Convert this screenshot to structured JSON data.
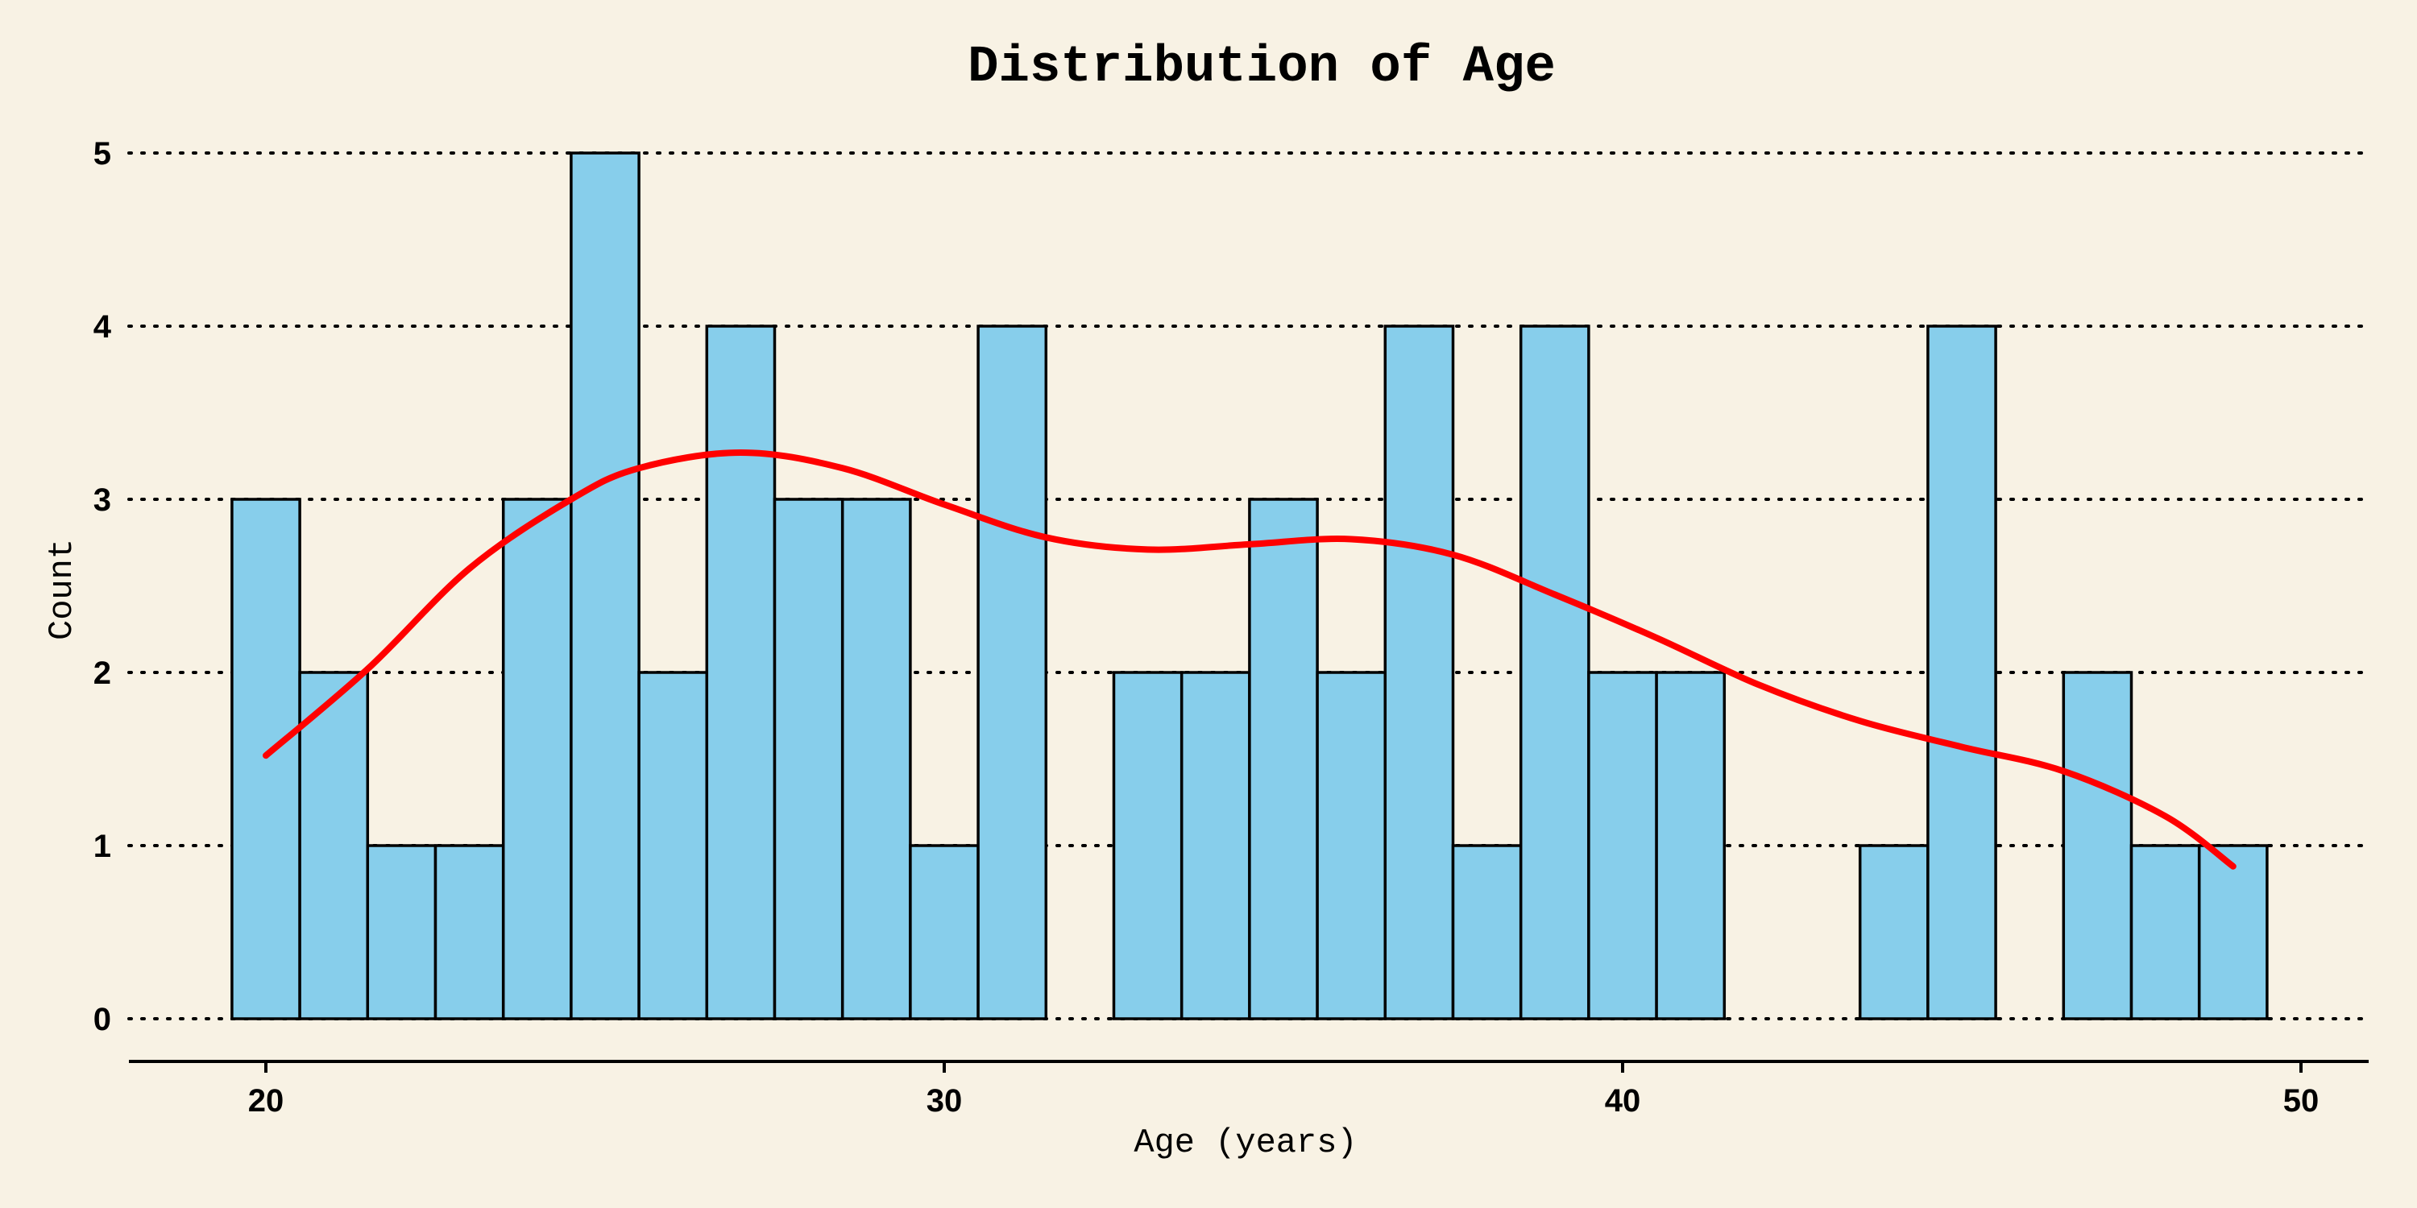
{
  "colors": {
    "background": "#f8f2e4",
    "bar_fill": "#87ceeb",
    "bar_edge": "#000000",
    "kde_line": "#ff0000",
    "grid": "#000000"
  },
  "chart_data": {
    "type": "bar",
    "title": "Distribution of Age",
    "xlabel": "Age (years)",
    "ylabel": "Count",
    "bin_width": 1,
    "bin_centers": [
      20,
      21,
      22,
      23,
      24,
      25,
      26,
      27,
      28,
      29,
      30,
      31,
      32,
      33,
      34,
      35,
      36,
      37,
      38,
      39,
      40,
      41,
      42,
      43,
      44,
      45,
      46,
      47,
      48,
      49
    ],
    "values": [
      3,
      2,
      1,
      1,
      3,
      5,
      2,
      4,
      3,
      3,
      1,
      4,
      0,
      2,
      2,
      3,
      2,
      4,
      1,
      4,
      2,
      2,
      0,
      0,
      1,
      4,
      0,
      2,
      1,
      1
    ],
    "xlim": [
      18,
      51
    ],
    "ylim": [
      0,
      5
    ],
    "x_ticks": [
      20,
      30,
      40,
      50
    ],
    "y_ticks": [
      0,
      1,
      2,
      3,
      4,
      5
    ],
    "grid": "y-dotted",
    "kde": {
      "name": "density estimate",
      "x": [
        20,
        21.5,
        23,
        24.5,
        25.5,
        27,
        28.5,
        30,
        31.5,
        33,
        34.5,
        36,
        37.5,
        39,
        40.5,
        42,
        43.5,
        45,
        46.5,
        48,
        49
      ],
      "y": [
        1.52,
        2.02,
        2.6,
        3.0,
        3.18,
        3.27,
        3.18,
        2.97,
        2.78,
        2.71,
        2.74,
        2.77,
        2.68,
        2.45,
        2.2,
        1.93,
        1.72,
        1.57,
        1.43,
        1.17,
        0.88
      ]
    }
  }
}
